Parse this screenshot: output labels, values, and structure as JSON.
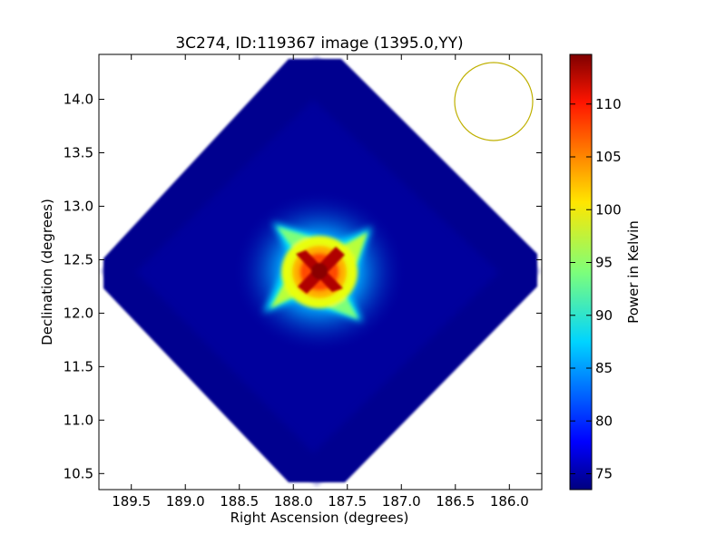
{
  "chart_data": {
    "type": "heatmap",
    "title": "3C274, ID:119367 image (1395.0,YY)",
    "xlabel": "Right Ascension (degrees)",
    "ylabel": "Declination (degrees)",
    "xlim": [
      189.8,
      185.7
    ],
    "ylim": [
      10.35,
      14.42
    ],
    "xticks": [
      "189.5",
      "189.0",
      "188.5",
      "188.0",
      "187.5",
      "187.0",
      "186.5",
      "186.0"
    ],
    "yticks": [
      "10.5",
      "11.0",
      "11.5",
      "12.0",
      "12.5",
      "13.0",
      "13.5",
      "14.0"
    ],
    "colorbar": {
      "label": "Power in Kelvin",
      "min": 73.5,
      "max": 114.7,
      "ticks": [
        "75",
        "80",
        "85",
        "90",
        "95",
        "100",
        "105",
        "110"
      ],
      "colormap": "jet"
    },
    "image_footprint": {
      "shape": "diamond",
      "center_ra": 187.75,
      "center_dec": 12.4,
      "half_extent_ra": 2.05,
      "half_extent_dec": 2.0
    },
    "peak": {
      "ra": 187.75,
      "dec": 12.4,
      "value": 114.0
    },
    "background_value": 74.5,
    "beam_circle": {
      "ra": 186.07,
      "dec": 14.0,
      "color": "#bfb000"
    }
  }
}
